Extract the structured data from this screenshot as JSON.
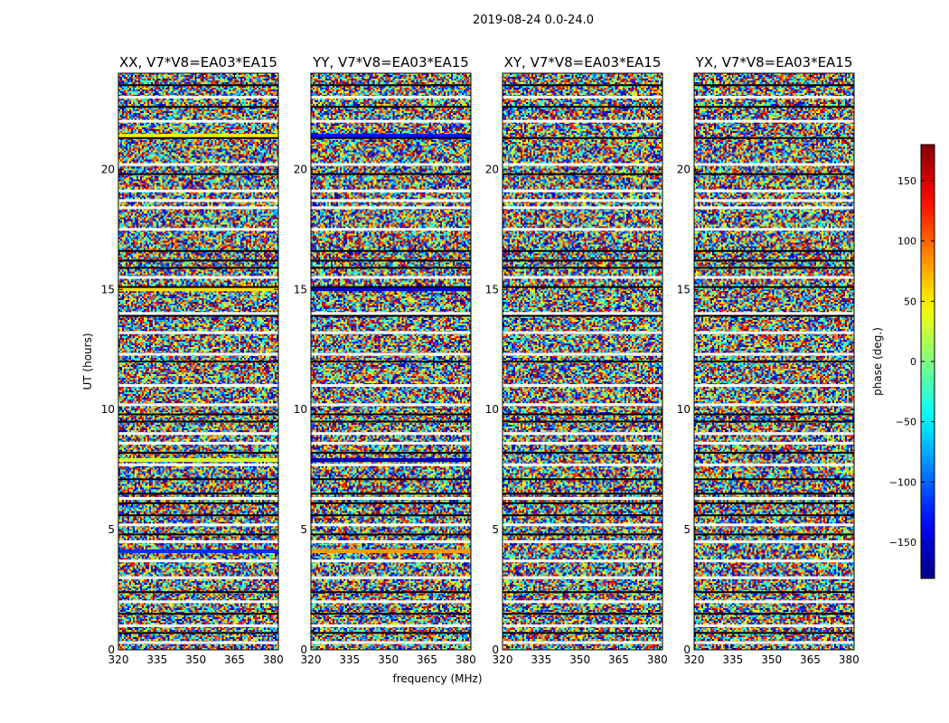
{
  "chart_data": {
    "type": "heatmap",
    "suptitle": "2019-08-24 0.0-24.0",
    "xlabel": "frequency (MHz)",
    "ylabel": "UT (hours)",
    "xlim": [
      320,
      382
    ],
    "ylim": [
      0,
      24
    ],
    "xticks": [
      320,
      335,
      350,
      365,
      380
    ],
    "yticks": [
      0,
      5,
      10,
      15,
      20
    ],
    "colorbar": {
      "label": "phase (deg.)",
      "range": [
        -180,
        180
      ],
      "ticks": [
        -150,
        -100,
        -50,
        0,
        50,
        100,
        150
      ],
      "tick_labels": [
        "−150",
        "−100",
        "−50",
        "0",
        "50",
        "100",
        "150"
      ],
      "colormap": "jet"
    },
    "panels": [
      {
        "title": "XX, V7*V8=EA03*EA15"
      },
      {
        "title": "YY, V7*V8=EA03*EA15"
      },
      {
        "title": "XY, V7*V8=EA03*EA15"
      },
      {
        "title": "YX, V7*V8=EA03*EA15"
      }
    ],
    "flagged_white_gaps_hours": [
      0.3,
      1.0,
      2.0,
      3.0,
      3.7,
      4.5,
      5.2,
      6.3,
      7.7,
      8.6,
      9.0,
      10.2,
      11.0,
      12.3,
      13.2,
      14.0,
      15.5,
      17.5,
      18.4,
      18.7,
      19.1,
      20.2,
      22.0,
      23.0
    ],
    "flagged_black_lines_hours": [
      0.7,
      1.5,
      2.4,
      4.8,
      5.6,
      6.1,
      6.5,
      7.1,
      8.2,
      9.5,
      9.8,
      12.0,
      13.9,
      15.1,
      15.9,
      16.2,
      16.6,
      19.8,
      21.3,
      22.6,
      23.5
    ],
    "coherent_stripes": [
      {
        "panel": "XX",
        "ut": 21.4,
        "phase": 50
      },
      {
        "panel": "XX",
        "ut": 15.0,
        "phase": 55
      },
      {
        "panel": "XX",
        "ut": 7.9,
        "phase": 30
      },
      {
        "panel": "XX",
        "ut": 4.1,
        "phase": -120
      },
      {
        "panel": "YY",
        "ut": 21.4,
        "phase": -130
      },
      {
        "panel": "YY",
        "ut": 15.0,
        "phase": -150
      },
      {
        "panel": "YY",
        "ut": 7.9,
        "phase": -160
      },
      {
        "panel": "YY",
        "ut": 4.1,
        "phase": 80
      }
    ]
  }
}
